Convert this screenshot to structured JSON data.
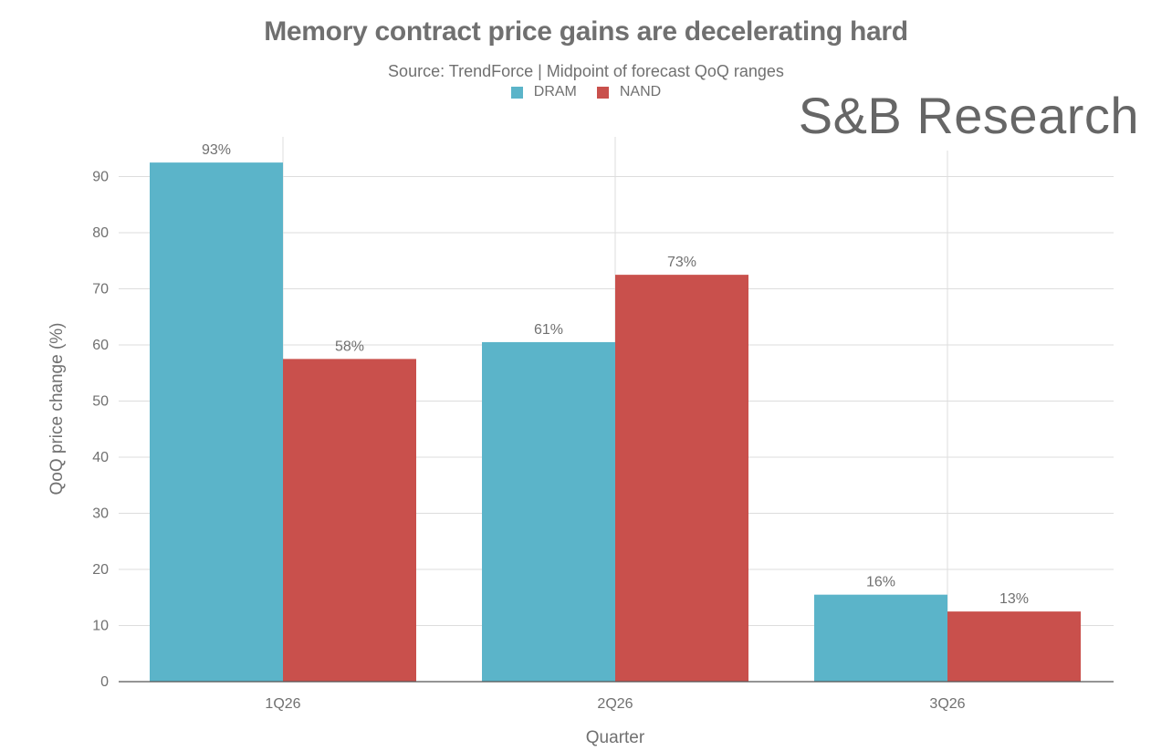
{
  "watermark": "S&B Research",
  "legend": {
    "items": [
      {
        "label": "DRAM",
        "color": "#5bb4c9"
      },
      {
        "label": "NAND",
        "color": "#c9504c"
      }
    ]
  },
  "chart_data": {
    "type": "bar",
    "title": "Memory contract price gains are decelerating hard",
    "subtitle": "Source: TrendForce | Midpoint of forecast QoQ ranges",
    "xlabel": "Quarter",
    "ylabel": "QoQ price change (%)",
    "categories": [
      "1Q26",
      "2Q26",
      "3Q26"
    ],
    "series": [
      {
        "name": "DRAM",
        "color": "#5bb4c9",
        "values": [
          92.5,
          60.5,
          15.5
        ],
        "labels": [
          "93%",
          "61%",
          "16%"
        ]
      },
      {
        "name": "NAND",
        "color": "#c9504c",
        "values": [
          57.5,
          72.5,
          12.5
        ],
        "labels": [
          "58%",
          "73%",
          "13%"
        ]
      }
    ],
    "ylim": [
      0,
      100
    ],
    "yticks": [
      0,
      10,
      20,
      30,
      40,
      50,
      60,
      70,
      80,
      90
    ],
    "grid": true,
    "legend_position": "top-center"
  }
}
